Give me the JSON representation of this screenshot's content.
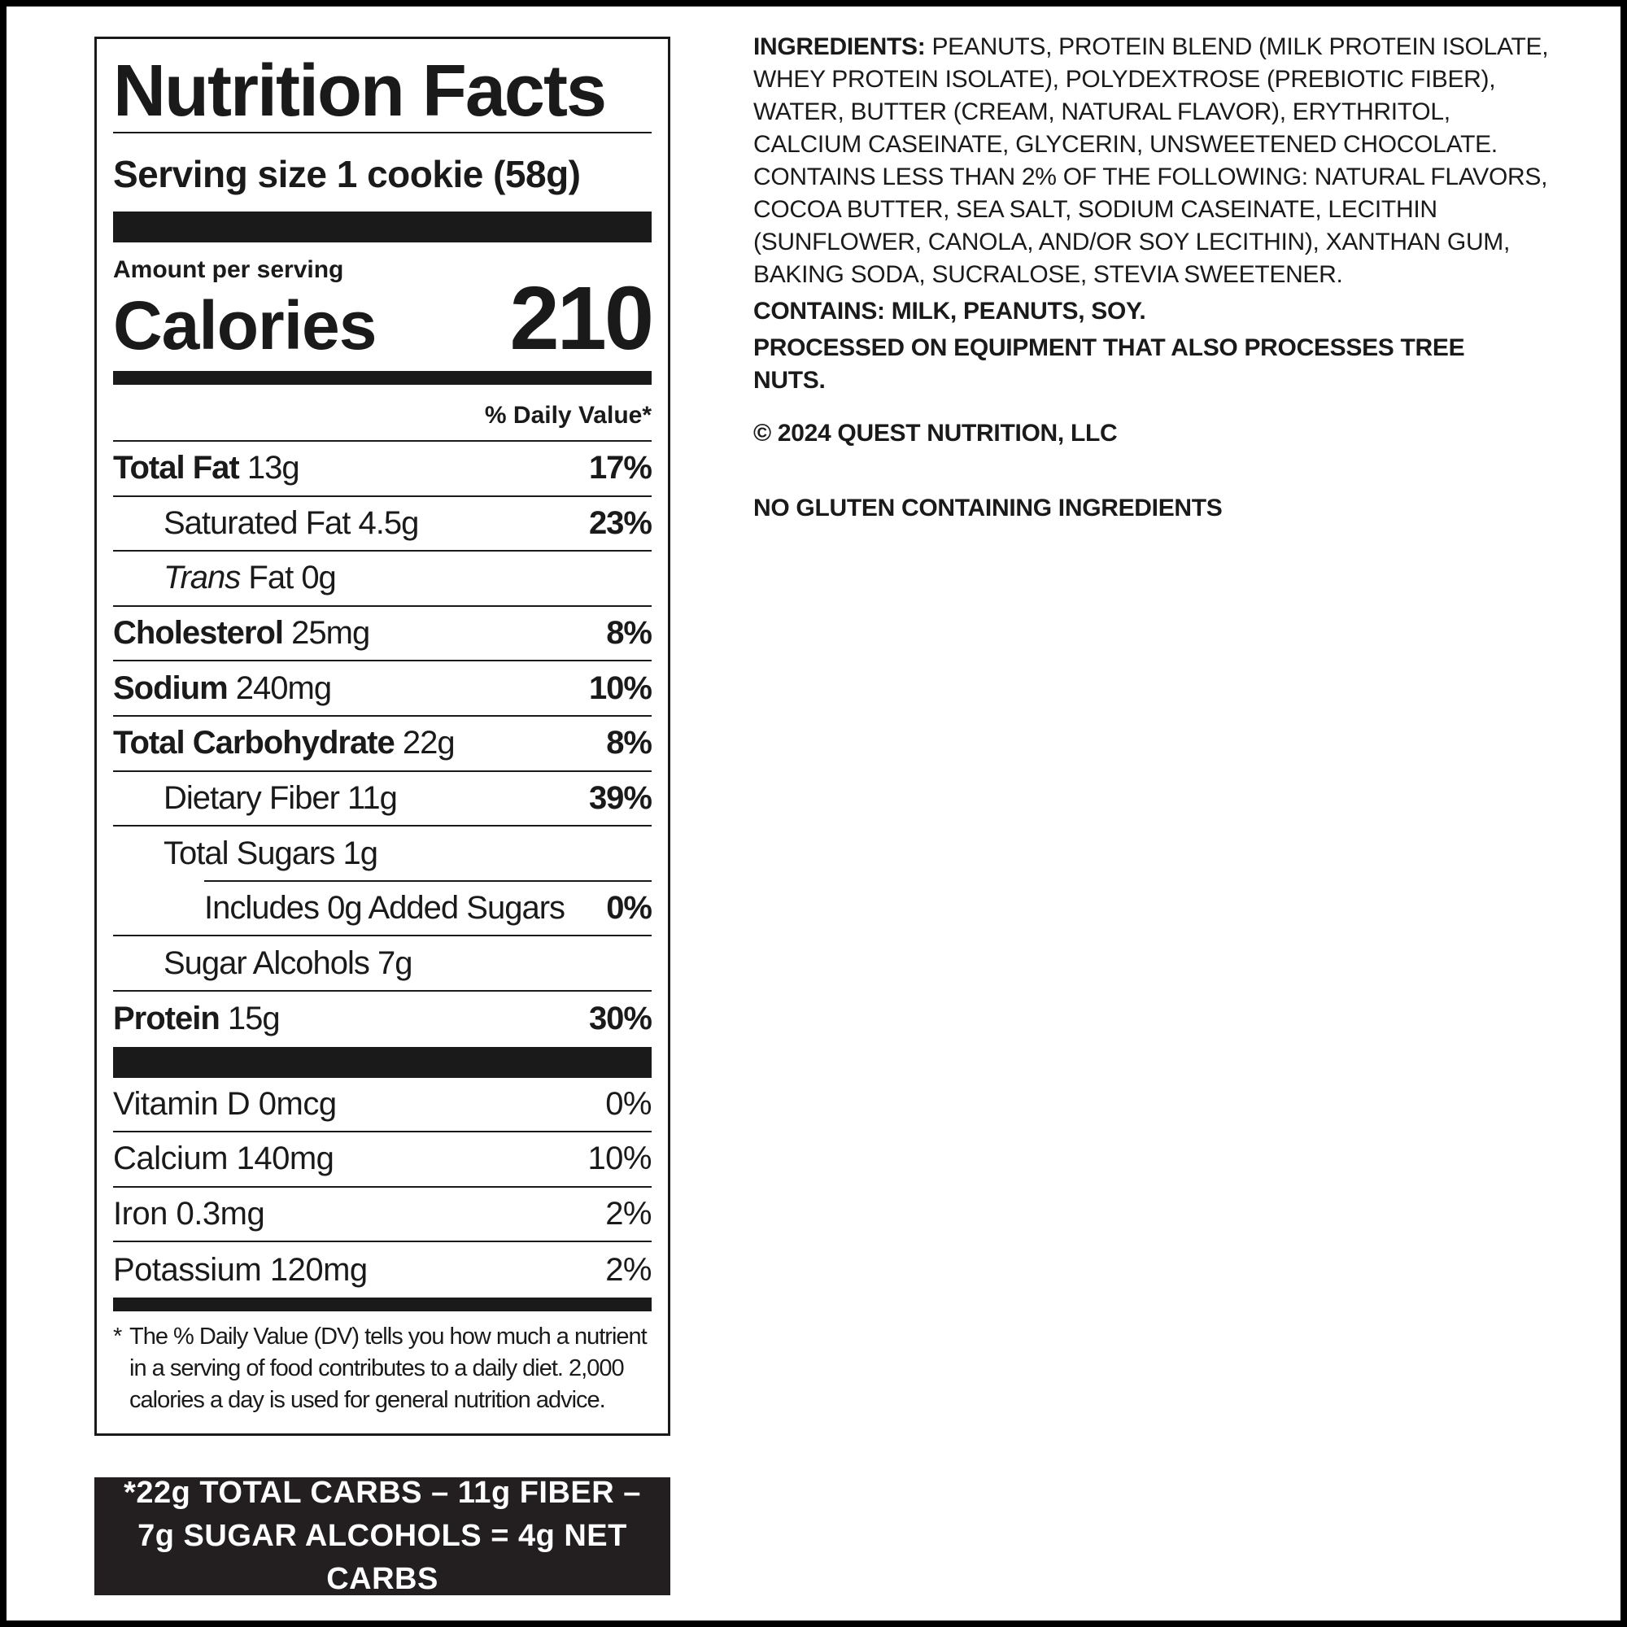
{
  "nutrition_facts": {
    "title": "Nutrition Facts",
    "serving_size": "Serving size 1 cookie (58g)",
    "amount_per_serving": "Amount per serving",
    "calories_label": "Calories",
    "calories": 210,
    "daily_value_header": "% Daily Value*",
    "rows": [
      {
        "name": "Total Fat",
        "amount": "13g",
        "dv": "17%"
      },
      {
        "name": "Saturated Fat 4.5g",
        "dv": "23%"
      },
      {
        "italic": "Trans",
        "name": "Fat 0g"
      },
      {
        "name": "Cholesterol",
        "amount": "25mg",
        "dv": "8%"
      },
      {
        "name": "Sodium",
        "amount": "240mg",
        "dv": "10%"
      },
      {
        "name": "Total Carbohydrate",
        "amount": "22g",
        "dv": "8%"
      },
      {
        "name": "Dietary Fiber 11g",
        "dv": "39%"
      },
      {
        "name": "Total Sugars 1g"
      },
      {
        "name": "Includes 0g Added Sugars",
        "dv": "0%"
      },
      {
        "name": "Sugar Alcohols 7g"
      },
      {
        "name": "Protein",
        "amount": "15g",
        "dv": "30%"
      }
    ],
    "vitamins": [
      {
        "name": "Vitamin D 0mcg",
        "dv": "0%"
      },
      {
        "name": "Calcium 140mg",
        "dv": "10%"
      },
      {
        "name": "Iron 0.3mg",
        "dv": "2%"
      },
      {
        "name": "Potassium 120mg",
        "dv": "2%"
      }
    ],
    "footnote_star": "*",
    "footnote": "The % Daily Value (DV) tells you how much a nutrient in a serving of food contributes to a daily diet. 2,000 calories a day is used for general nutrition advice."
  },
  "net_carbs": {
    "lines": [
      "*22g TOTAL CARBS – 11g FIBER –",
      "7g SUGAR ALCOHOLS = 4g NET CARBS"
    ]
  },
  "ingredients": {
    "label": "INGREDIENTS:",
    "text": "PEANUTS, PROTEIN BLEND (MILK PROTEIN ISOLATE, WHEY PROTEIN ISOLATE), POLYDEXTROSE (PREBIOTIC FIBER), WATER, BUTTER (CREAM, NATURAL FLAVOR), ERYTHRITOL, CALCIUM CASEINATE, GLYCERIN, UNSWEETENED CHOCOLATE. CONTAINS LESS THAN 2% OF THE FOLLOWING: NATURAL FLAVORS, COCOA BUTTER, SEA SALT, SODIUM CASEINATE, LECITHIN (SUNFLOWER, CANOLA, AND/OR SOY LECITHIN), XANTHAN GUM, BAKING SODA, SUCRALOSE, STEVIA SWEETENER.",
    "contains": "CONTAINS: MILK, PEANUTS, SOY.",
    "processed": "PROCESSED ON EQUIPMENT THAT ALSO PROCESSES TREE NUTS.",
    "copyright": "© 2024 QUEST NUTRITION, LLC",
    "gluten": "NO GLUTEN CONTAINING INGREDIENTS"
  }
}
